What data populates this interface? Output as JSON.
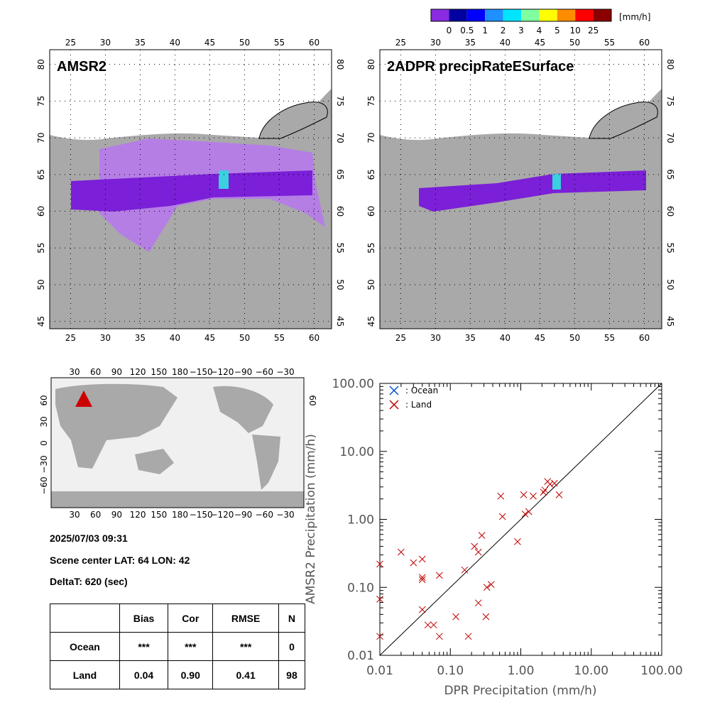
{
  "colorbar": {
    "unit": "[mm/h]",
    "labels": [
      "0",
      "0.5",
      "1",
      "2",
      "3",
      "4",
      "5",
      "10",
      "25"
    ],
    "colors": [
      "#8a2be2",
      "#0000a0",
      "#0000ff",
      "#1e90ff",
      "#00e5ff",
      "#7fffa0",
      "#ffff00",
      "#ff8c00",
      "#ff0000",
      "#8b0000"
    ]
  },
  "map_left": {
    "title": "AMSR2",
    "x_ticks": [
      "25",
      "30",
      "35",
      "40",
      "45",
      "50",
      "55",
      "60"
    ],
    "y_ticks": [
      "45",
      "50",
      "55",
      "60",
      "65",
      "70",
      "75",
      "80"
    ]
  },
  "map_right": {
    "title": "2ADPR precipRateESurface",
    "x_ticks": [
      "25",
      "30",
      "35",
      "40",
      "45",
      "50",
      "55",
      "60"
    ],
    "y_ticks": [
      "45",
      "50",
      "55",
      "60",
      "65",
      "70",
      "75",
      "80"
    ]
  },
  "world_map": {
    "x_ticks": [
      "30",
      "60",
      "90",
      "120",
      "150",
      "180",
      "−150",
      "−120",
      "−90",
      "−60",
      "−30"
    ],
    "y_ticks": [
      "60",
      "30",
      "0",
      "−30",
      "−60"
    ],
    "marker_color": "#cc0000"
  },
  "info": {
    "datetime": "2025/07/03 09:31",
    "scene_center": "Scene center LAT: 64   LON:  42",
    "delta_t": "DeltaT:  620 (sec)"
  },
  "stats_table": {
    "headers": [
      "",
      "Bias",
      "Cor",
      "RMSE",
      "N"
    ],
    "rows": [
      [
        "Ocean",
        "***",
        "***",
        "***",
        "0"
      ],
      [
        "Land",
        "0.04",
        "0.90",
        "0.41",
        "98"
      ]
    ]
  },
  "chart_data": {
    "type": "scatter",
    "xlabel": "DPR Precipitation (mm/h)",
    "ylabel": "AMSR2 Precipitation (mm/h)",
    "xscale": "log",
    "yscale": "log",
    "xlim": [
      0.01,
      100
    ],
    "ylim": [
      0.01,
      100
    ],
    "x_tick_labels": [
      "0.01",
      "0.10",
      "1.00",
      "10.00",
      "100.00"
    ],
    "y_tick_labels": [
      "0.01",
      "0.10",
      "1.00",
      "10.00",
      "100.00"
    ],
    "legend": [
      {
        "name": ": Ocean",
        "color": "#0050d0"
      },
      {
        "name": ": Land",
        "color": "#c00000"
      }
    ],
    "legend_position": "top-left",
    "series": [
      {
        "name": ": Ocean",
        "color": "#0050d0",
        "points": []
      },
      {
        "name": ": Land",
        "color": "#c00000",
        "points": [
          [
            0.01,
            0.22
          ],
          [
            0.01,
            0.067
          ],
          [
            0.01,
            0.019
          ],
          [
            0.02,
            0.33
          ],
          [
            0.03,
            0.23
          ],
          [
            0.04,
            0.26
          ],
          [
            0.04,
            0.14
          ],
          [
            0.04,
            0.13
          ],
          [
            0.04,
            0.047
          ],
          [
            0.048,
            0.028
          ],
          [
            0.058,
            0.028
          ],
          [
            0.07,
            0.15
          ],
          [
            0.07,
            0.019
          ],
          [
            0.12,
            0.037
          ],
          [
            0.16,
            0.18
          ],
          [
            0.18,
            0.019
          ],
          [
            0.22,
            0.4
          ],
          [
            0.25,
            0.33
          ],
          [
            0.25,
            0.059
          ],
          [
            0.28,
            0.58
          ],
          [
            0.32,
            0.037
          ],
          [
            0.33,
            0.1
          ],
          [
            0.38,
            0.11
          ],
          [
            0.52,
            2.2
          ],
          [
            0.55,
            1.1
          ],
          [
            0.9,
            0.47
          ],
          [
            1.1,
            2.3
          ],
          [
            1.15,
            1.2
          ],
          [
            1.3,
            1.3
          ],
          [
            1.5,
            2.2
          ],
          [
            2.1,
            2.5
          ],
          [
            2.2,
            2.7
          ],
          [
            2.4,
            3.6
          ],
          [
            2.6,
            3.3
          ],
          [
            3.0,
            3.4
          ],
          [
            3.5,
            2.3
          ]
        ]
      }
    ]
  }
}
